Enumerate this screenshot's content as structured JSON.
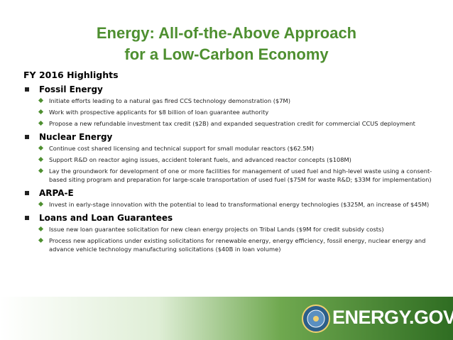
{
  "title_lines": [
    "Energy: All-of-the-Above Approach",
    "for a Low-Carbon Economy"
  ],
  "subtitle": "FY 2016 Highlights",
  "sections": [
    {
      "heading": "Fossil Energy",
      "items": [
        "Initiate efforts leading to a natural gas fired CCS technology demonstration ($7M)",
        "Work with prospective applicants for $8 billion of loan guarantee authority",
        "Propose a new refundable investment tax credit ($2B) and expanded sequestration credit for commercial CCUS deployment"
      ]
    },
    {
      "heading": "Nuclear Energy",
      "items": [
        "Continue cost shared licensing and technical support for small modular reactors ($62.5M)",
        "Support R&D on reactor aging issues, accident tolerant fuels, and advanced reactor concepts ($108M)",
        "Lay the groundwork for development of one or more facilities for management of used fuel and high-level waste using a consent-based siting program and preparation for large-scale transportation of used fuel ($75M for waste R&D; $33M for implementation)"
      ]
    },
    {
      "heading": "ARPA-E",
      "items": [
        "Invest in early-stage innovation with the potential to lead to transformational energy technologies ($325M, an increase of $45M)"
      ]
    },
    {
      "heading": "Loans and Loan Guarantees",
      "items": [
        "Issue new loan guarantee solicitation for new clean energy projects on Tribal Lands ($9M for credit subsidy costs)",
        "Process new applications under existing solicitations for renewable energy, energy efficiency, fossil energy, nuclear energy and advance vehicle technology manufacturing solicitations ($40B in loan volume)"
      ]
    }
  ],
  "footer": {
    "logo_text": "ENERGY.GOV"
  }
}
